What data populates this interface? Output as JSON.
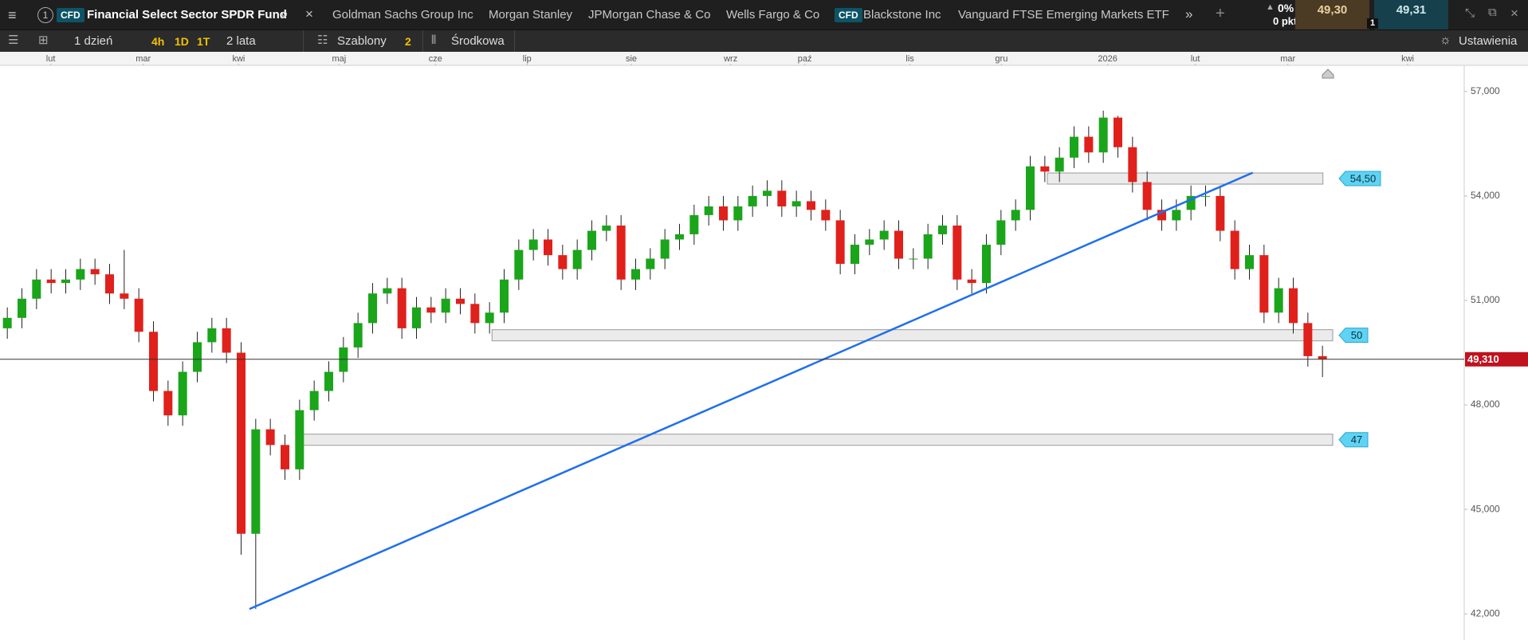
{
  "toolbar": {
    "tab_number": "1",
    "instrument_badge": "CFD",
    "instrument": "Financial Select Sector SPDR Fund",
    "tabs": [
      {
        "label": "Goldman Sachs Group Inc"
      },
      {
        "label": "Morgan Stanley"
      },
      {
        "label": "JPMorgan Chase & Co"
      },
      {
        "label": "Wells Fargo & Co"
      },
      {
        "badge": "CFD",
        "label": "Blackstone Inc"
      },
      {
        "label": "Vanguard FTSE Emerging Markets ETF"
      }
    ],
    "change": "0%",
    "change_points": "0 pkt",
    "sell": "49,30",
    "buy": "49,31",
    "quantity": "1"
  },
  "controls": {
    "interval": "1 dzień",
    "quick": [
      "4h",
      "1D",
      "1T"
    ],
    "range": "2 lata",
    "templates": "Szablony",
    "templates_count": "2",
    "price_type": "Środkowa",
    "settings": "Ustawienia"
  },
  "chart_data": {
    "type": "candlestick",
    "up_color": "#1aa51a",
    "down_color": "#e0201b",
    "grid": false,
    "x": [
      0,
      1,
      2,
      3,
      4,
      5,
      6,
      7,
      8,
      9,
      10,
      11,
      12,
      13,
      14,
      15,
      16,
      17,
      18,
      19,
      20,
      21,
      22,
      23,
      24,
      25,
      26,
      27,
      28,
      29,
      30,
      31,
      32,
      33,
      34,
      35,
      36,
      37,
      38,
      39,
      40,
      41,
      42,
      43,
      44,
      45,
      46,
      47,
      48,
      49,
      50,
      51,
      52,
      53,
      54,
      55,
      56,
      57,
      58,
      59,
      60,
      61,
      62,
      63,
      64,
      65,
      66,
      67,
      68,
      69,
      70,
      71,
      72,
      73,
      74,
      75,
      76,
      77,
      78,
      79,
      80,
      81,
      82,
      83,
      84,
      85,
      86,
      87,
      88,
      89,
      90
    ],
    "open": [
      50.2,
      50.5,
      51.05,
      51.6,
      51.5,
      51.6,
      51.9,
      51.75,
      51.2,
      51.05,
      50.1,
      48.4,
      47.7,
      48.95,
      49.8,
      50.2,
      49.5,
      44.3,
      47.3,
      46.85,
      46.15,
      47.85,
      48.4,
      48.95,
      49.65,
      50.35,
      51.2,
      51.35,
      50.2,
      50.8,
      50.65,
      51.05,
      50.9,
      50.35,
      50.65,
      51.6,
      52.45,
      52.75,
      52.3,
      51.9,
      52.45,
      53.0,
      53.15,
      51.6,
      51.9,
      52.2,
      52.75,
      52.9,
      53.45,
      53.7,
      53.3,
      53.7,
      54.0,
      54.15,
      53.7,
      53.85,
      53.6,
      53.3,
      52.05,
      52.6,
      52.75,
      53.0,
      52.2,
      52.2,
      52.9,
      53.15,
      51.6,
      51.5,
      52.6,
      53.3,
      53.6,
      54.85,
      54.7,
      55.1,
      55.7,
      55.25,
      56.25,
      55.4,
      54.4,
      53.6,
      53.3,
      53.6,
      54.0,
      54.0,
      53.0,
      51.9,
      52.3,
      50.65,
      51.35,
      50.35,
      49.4
    ],
    "high": [
      50.8,
      51.35,
      51.9,
      51.9,
      51.9,
      52.2,
      52.2,
      52.05,
      52.45,
      51.35,
      50.4,
      48.7,
      49.25,
      50.1,
      50.5,
      50.5,
      49.8,
      47.6,
      47.6,
      47.15,
      48.15,
      48.7,
      49.25,
      49.95,
      50.65,
      51.5,
      51.65,
      51.65,
      51.1,
      51.1,
      51.35,
      51.35,
      51.2,
      50.95,
      51.9,
      52.75,
      53.05,
      53.05,
      52.6,
      52.75,
      53.3,
      53.45,
      53.45,
      52.2,
      52.5,
      53.05,
      53.2,
      53.75,
      54.0,
      54.0,
      54.0,
      54.3,
      54.45,
      54.45,
      54.15,
      54.15,
      53.9,
      53.6,
      52.9,
      53.05,
      53.3,
      53.3,
      52.5,
      53.2,
      53.45,
      53.45,
      51.9,
      52.9,
      53.6,
      53.9,
      55.15,
      55.15,
      55.4,
      56.0,
      56.0,
      56.45,
      56.3,
      55.7,
      54.7,
      53.9,
      53.9,
      54.3,
      54.3,
      54.3,
      53.3,
      52.6,
      52.6,
      51.65,
      51.65,
      50.65,
      49.7
    ],
    "low": [
      49.9,
      50.2,
      50.75,
      51.2,
      51.2,
      51.3,
      51.45,
      50.9,
      50.75,
      49.8,
      48.1,
      47.4,
      47.4,
      48.65,
      49.5,
      49.2,
      43.7,
      42.14,
      46.55,
      45.85,
      45.85,
      47.55,
      48.1,
      48.65,
      49.35,
      50.05,
      50.9,
      49.9,
      49.9,
      50.35,
      50.35,
      50.6,
      50.05,
      50.05,
      50.35,
      51.3,
      52.15,
      52.0,
      51.6,
      51.6,
      52.15,
      52.7,
      51.3,
      51.3,
      51.6,
      51.9,
      52.45,
      52.6,
      53.15,
      53.0,
      53.0,
      53.4,
      53.7,
      53.4,
      53.4,
      53.3,
      53.0,
      51.75,
      51.75,
      52.3,
      52.45,
      51.9,
      51.9,
      51.9,
      52.6,
      51.3,
      51.2,
      51.2,
      52.3,
      53.0,
      53.3,
      54.4,
      54.4,
      54.8,
      54.95,
      54.95,
      55.1,
      54.1,
      53.3,
      53.0,
      53.0,
      53.3,
      53.7,
      52.7,
      51.6,
      51.6,
      50.35,
      50.35,
      50.05,
      49.1,
      48.8
    ],
    "close": [
      50.5,
      51.05,
      51.6,
      51.5,
      51.6,
      51.9,
      51.75,
      51.2,
      51.05,
      50.1,
      48.4,
      47.7,
      48.95,
      49.8,
      50.2,
      49.5,
      44.3,
      47.3,
      46.85,
      46.15,
      47.85,
      48.4,
      48.95,
      49.65,
      50.35,
      51.2,
      51.35,
      50.2,
      50.8,
      50.65,
      51.05,
      50.9,
      50.35,
      50.65,
      51.6,
      52.45,
      52.75,
      52.3,
      51.9,
      52.45,
      53.0,
      53.15,
      51.6,
      51.9,
      52.2,
      52.75,
      52.9,
      53.45,
      53.7,
      53.3,
      53.7,
      54.0,
      54.15,
      53.7,
      53.85,
      53.6,
      53.3,
      52.05,
      52.6,
      52.75,
      53.0,
      52.2,
      52.2,
      52.9,
      53.15,
      51.6,
      51.5,
      52.6,
      53.3,
      53.6,
      54.85,
      54.7,
      55.1,
      55.7,
      55.25,
      56.25,
      55.4,
      54.4,
      53.6,
      53.3,
      53.6,
      54.0,
      54.0,
      53.0,
      51.9,
      52.3,
      50.65,
      51.35,
      50.35,
      49.4,
      49.31
    ],
    "xlim": [
      -0.5,
      99.7
    ],
    "xticks": [
      {
        "value": 2.97,
        "label": "lut"
      },
      {
        "value": 9.3,
        "label": "mar"
      },
      {
        "value": 15.83,
        "label": "kwi"
      },
      {
        "value": 22.7,
        "label": "maj"
      },
      {
        "value": 29.3,
        "label": "cze"
      },
      {
        "value": 35.57,
        "label": "lip"
      },
      {
        "value": 42.7,
        "label": "sie"
      },
      {
        "value": 49.5,
        "label": "wrz"
      },
      {
        "value": 54.57,
        "label": "paź"
      },
      {
        "value": 61.77,
        "label": "lis"
      },
      {
        "value": 68.03,
        "label": "gru"
      },
      {
        "value": 75.3,
        "label": "2026"
      },
      {
        "value": 81.3,
        "label": "lut"
      },
      {
        "value": 87.63,
        "label": "mar"
      },
      {
        "value": 95.83,
        "label": "kwi"
      }
    ],
    "ylim": [
      41.25,
      57.75
    ],
    "yticks": [
      {
        "value": 42,
        "label": "42,000"
      },
      {
        "value": 45,
        "label": "45,000"
      },
      {
        "value": 48,
        "label": "48,000"
      },
      {
        "value": 51,
        "label": "51,000"
      },
      {
        "value": 54,
        "label": "54,000"
      },
      {
        "value": 57,
        "label": "57,000"
      }
    ],
    "last_price": 49.31,
    "last_price_label": "49,310",
    "trendline": {
      "x": [
        16.57,
        85.23
      ],
      "y": [
        42.14,
        54.67
      ],
      "color": "#1f6fef"
    },
    "levels": [
      {
        "value": 54.5,
        "label": "54,50",
        "x": [
          71.17,
          90.03
        ]
      },
      {
        "value": 50,
        "x": [
          33.17,
          90.7
        ]
      },
      {
        "value": 47,
        "x": [
          20.03,
          90.7
        ]
      }
    ]
  }
}
